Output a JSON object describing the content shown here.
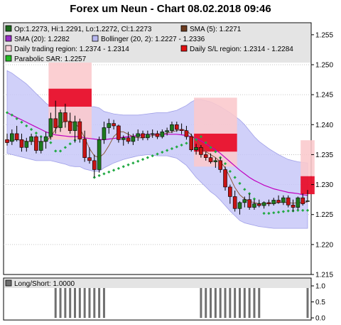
{
  "title": "Forex um Neun - Chart 08.02.2018 09:46",
  "legend": [
    {
      "label": "Op:1.2273, Hi:1.2291, Lo:1.2272, Cl:1.2273",
      "color": "#1e6b1e"
    },
    {
      "label": "SMA (5): 1.2271",
      "color": "#6b3a1e"
    },
    {
      "label": "SMA (20): 1.2282",
      "color": "#9b30c8"
    },
    {
      "label": "Bollinger (20, 2): 1.2227 - 1.2336",
      "color": "#b8b8f0"
    },
    {
      "label": "Daily trading region: 1.2374 - 1.2314",
      "color": "#f7d0d8"
    },
    {
      "label": "Daily S/L region: 1.2314 - 1.2284",
      "color": "#e01010"
    },
    {
      "label": "Parabolic SAR: 1.2257",
      "color": "#22bb22"
    }
  ],
  "colors": {
    "bull": "#1e7a1e",
    "bear": "#c81414",
    "sma5": "#8b5a3c",
    "sma20": "#c000c0",
    "bollinger_fill": "#c8c8f8",
    "bollinger_line": "#a0a0e8",
    "trading_region": "#fbc8cc",
    "sl_region": "#e8102c",
    "sar": "#22aa44",
    "volume": "#707070"
  },
  "chart_data": [
    {
      "type": "candlestick",
      "ylim": [
        1.215,
        1.257
      ],
      "yticks": [
        "1.215",
        "1.220",
        "1.225",
        "1.230",
        "1.235",
        "1.240",
        "1.245",
        "1.250",
        "1.255"
      ],
      "ytick_values": [
        1.215,
        1.22,
        1.225,
        1.23,
        1.235,
        1.24,
        1.245,
        1.25,
        1.255
      ],
      "candles": [
        [
          1.2375,
          1.2385,
          1.2365,
          1.237
        ],
        [
          1.2372,
          1.2392,
          1.2366,
          1.2385
        ],
        [
          1.2385,
          1.2398,
          1.2372,
          1.2375
        ],
        [
          1.2375,
          1.2385,
          1.2355,
          1.2362
        ],
        [
          1.2362,
          1.2378,
          1.2355,
          1.2372
        ],
        [
          1.2372,
          1.2385,
          1.2366,
          1.238
        ],
        [
          1.238,
          1.2383,
          1.2352,
          1.2357
        ],
        [
          1.2357,
          1.238,
          1.2352,
          1.2372
        ],
        [
          1.2372,
          1.2388,
          1.236,
          1.238
        ],
        [
          1.238,
          1.242,
          1.2375,
          1.241
        ],
        [
          1.241,
          1.244,
          1.2385,
          1.2395
        ],
        [
          1.2395,
          1.2425,
          1.2388,
          1.242
        ],
        [
          1.242,
          1.2435,
          1.2395,
          1.2405
        ],
        [
          1.2405,
          1.242,
          1.2385,
          1.239
        ],
        [
          1.239,
          1.2415,
          1.237,
          1.2405
        ],
        [
          1.2405,
          1.241,
          1.237,
          1.2376
        ],
        [
          1.2376,
          1.239,
          1.2338,
          1.2345
        ],
        [
          1.2345,
          1.2362,
          1.2335,
          1.234
        ],
        [
          1.234,
          1.235,
          1.2312,
          1.2325
        ],
        [
          1.2325,
          1.238,
          1.232,
          1.2375
        ],
        [
          1.2375,
          1.2405,
          1.2368,
          1.2395
        ],
        [
          1.2395,
          1.241,
          1.2385,
          1.2402
        ],
        [
          1.2402,
          1.2408,
          1.2392,
          1.2398
        ],
        [
          1.2398,
          1.24,
          1.237,
          1.2375
        ],
        [
          1.2375,
          1.2382,
          1.2365,
          1.2378
        ],
        [
          1.2378,
          1.2388,
          1.2368,
          1.2372
        ],
        [
          1.2372,
          1.2385,
          1.2366,
          1.238
        ],
        [
          1.238,
          1.2392,
          1.2373,
          1.2385
        ],
        [
          1.2385,
          1.239,
          1.2374,
          1.2378
        ],
        [
          1.2378,
          1.239,
          1.2374,
          1.2384
        ],
        [
          1.2384,
          1.2392,
          1.2378,
          1.2385
        ],
        [
          1.2385,
          1.239,
          1.2376,
          1.238
        ],
        [
          1.238,
          1.2392,
          1.2377,
          1.2388
        ],
        [
          1.2388,
          1.2395,
          1.2382,
          1.239
        ],
        [
          1.239,
          1.2405,
          1.2386,
          1.24
        ],
        [
          1.24,
          1.2405,
          1.2388,
          1.2392
        ],
        [
          1.2392,
          1.2402,
          1.2384,
          1.239
        ],
        [
          1.239,
          1.2398,
          1.2375,
          1.238
        ],
        [
          1.238,
          1.2385,
          1.2355,
          1.2358
        ],
        [
          1.2358,
          1.2368,
          1.235,
          1.2362
        ],
        [
          1.2362,
          1.2366,
          1.2345,
          1.235
        ],
        [
          1.235,
          1.2355,
          1.234,
          1.2345
        ],
        [
          1.2345,
          1.2352,
          1.2335,
          1.2338
        ],
        [
          1.2338,
          1.2345,
          1.2328,
          1.234
        ],
        [
          1.234,
          1.2345,
          1.232,
          1.2325
        ],
        [
          1.2325,
          1.233,
          1.229,
          1.2296
        ],
        [
          1.2296,
          1.23,
          1.2268,
          1.228
        ],
        [
          1.228,
          1.229,
          1.2255,
          1.226
        ],
        [
          1.226,
          1.2272,
          1.225,
          1.227
        ],
        [
          1.227,
          1.228,
          1.2262,
          1.2275
        ],
        [
          1.2275,
          1.2285,
          1.2258,
          1.2262
        ],
        [
          1.2262,
          1.2275,
          1.2258,
          1.2268
        ],
        [
          1.2268,
          1.2275,
          1.2262,
          1.2265
        ],
        [
          1.2265,
          1.2272,
          1.226,
          1.227
        ],
        [
          1.227,
          1.2275,
          1.2264,
          1.2268
        ],
        [
          1.2268,
          1.2278,
          1.2265,
          1.2274
        ],
        [
          1.2274,
          1.2282,
          1.2268,
          1.227
        ],
        [
          1.227,
          1.2282,
          1.2266,
          1.2278
        ],
        [
          1.2278,
          1.2282,
          1.2262,
          1.2266
        ],
        [
          1.2266,
          1.2275,
          1.2255,
          1.2262
        ],
        [
          1.2262,
          1.228,
          1.2258,
          1.2278
        ],
        [
          1.2278,
          1.2285,
          1.2265,
          1.2268
        ],
        [
          1.2273,
          1.2291,
          1.2272,
          1.2273
        ]
      ],
      "sma5": [
        1.2372,
        1.2374,
        1.2375,
        1.2374,
        1.2372,
        1.2372,
        1.2372,
        1.2372,
        1.2372,
        1.238,
        1.2392,
        1.2402,
        1.2406,
        1.2406,
        1.2402,
        1.2394,
        1.2378,
        1.236,
        1.2348,
        1.2345,
        1.2352,
        1.2365,
        1.238,
        1.2388,
        1.2388,
        1.2384,
        1.238,
        1.2378,
        1.2378,
        1.238,
        1.2382,
        1.2383,
        1.2384,
        1.2386,
        1.2388,
        1.239,
        1.2392,
        1.239,
        1.2383,
        1.2374,
        1.2364,
        1.2355,
        1.235,
        1.2345,
        1.2338,
        1.2328,
        1.2312,
        1.2295,
        1.2283,
        1.2276,
        1.2272,
        1.227,
        1.2268,
        1.2268,
        1.2268,
        1.2269,
        1.227,
        1.2271,
        1.227,
        1.2269,
        1.227,
        1.227,
        1.2271
      ],
      "sma20": [
        1.242,
        1.2416,
        1.2412,
        1.2408,
        1.2404,
        1.24,
        1.2396,
        1.2392,
        1.2388,
        1.2385,
        1.2383,
        1.2382,
        1.2381,
        1.238,
        1.238,
        1.238,
        1.2378,
        1.2377,
        1.2376,
        1.2375,
        1.2375,
        1.2376,
        1.2377,
        1.2378,
        1.2379,
        1.238,
        1.2381,
        1.2382,
        1.2383,
        1.2384,
        1.2384,
        1.2384,
        1.2384,
        1.2384,
        1.2384,
        1.2384,
        1.2383,
        1.2382,
        1.238,
        1.2377,
        1.2373,
        1.2368,
        1.2363,
        1.2358,
        1.2352,
        1.2345,
        1.2338,
        1.2331,
        1.2324,
        1.2318,
        1.2312,
        1.2307,
        1.2303,
        1.2299,
        1.2296,
        1.2293,
        1.2291,
        1.2289,
        1.2287,
        1.2286,
        1.2285,
        1.2283,
        1.2282
      ],
      "bollinger_upper": [
        1.249,
        1.2486,
        1.248,
        1.2474,
        1.2468,
        1.246,
        1.2452,
        1.2444,
        1.2436,
        1.243,
        1.2428,
        1.2428,
        1.2428,
        1.2429,
        1.243,
        1.243,
        1.243,
        1.243,
        1.243,
        1.2428,
        1.2422,
        1.242,
        1.2418,
        1.2417,
        1.2416,
        1.2416,
        1.2416,
        1.2416,
        1.2417,
        1.2418,
        1.2419,
        1.242,
        1.242,
        1.242,
        1.2422,
        1.2424,
        1.2428,
        1.2432,
        1.2438,
        1.2442,
        1.2442,
        1.244,
        1.2438,
        1.2434,
        1.243,
        1.2425,
        1.242,
        1.2414,
        1.2408,
        1.24,
        1.239,
        1.238,
        1.2372,
        1.2366,
        1.236,
        1.2355,
        1.235,
        1.2346,
        1.2342,
        1.234,
        1.2338,
        1.2337,
        1.2336
      ],
      "bollinger_lower": [
        1.2352,
        1.235,
        1.2348,
        1.2346,
        1.2344,
        1.2342,
        1.234,
        1.234,
        1.234,
        1.234,
        1.2338,
        1.2336,
        1.2334,
        1.2331,
        1.233,
        1.233,
        1.2326,
        1.2324,
        1.2322,
        1.2322,
        1.2328,
        1.2332,
        1.2336,
        1.2339,
        1.2342,
        1.2344,
        1.2346,
        1.2348,
        1.2349,
        1.235,
        1.2349,
        1.2348,
        1.2348,
        1.2348,
        1.2346,
        1.2344,
        1.2338,
        1.2332,
        1.2322,
        1.2312,
        1.2304,
        1.2296,
        1.2288,
        1.2282,
        1.2274,
        1.2265,
        1.2256,
        1.2248,
        1.224,
        1.2236,
        1.2234,
        1.2232,
        1.223,
        1.2229,
        1.2228,
        1.2227,
        1.2227,
        1.2227,
        1.2227,
        1.2227,
        1.2227,
        1.2227,
        1.2227
      ],
      "sar": [
        1.242,
        1.2416,
        1.241,
        1.2404,
        1.2398,
        1.2392,
        1.2386,
        1.238,
        1.2375,
        1.237,
        1.2356,
        1.2356,
        1.2362,
        1.2368,
        1.2374,
        1.238,
        null,
        null,
        1.2312,
        1.2315,
        1.2318,
        1.2321,
        1.2324,
        1.2327,
        1.233,
        1.2333,
        1.2336,
        1.2339,
        1.2342,
        1.2345,
        1.2348,
        1.2351,
        1.2354,
        1.2357,
        1.236,
        1.2363,
        1.2366,
        1.2369,
        1.2372,
        1.2375,
        1.238,
        1.237,
        1.2362,
        1.2355,
        1.2345,
        1.2335,
        1.2322,
        1.2312,
        1.2302,
        1.2292,
        1.2285,
        1.2276,
        1.2268,
        1.2252,
        1.2252,
        1.2253,
        1.2254,
        1.2255,
        1.2256,
        1.2256,
        1.2257,
        1.2257,
        1.2257
      ],
      "trading_regions": [
        {
          "start": 9,
          "end": 17,
          "top": 1.2535,
          "bottom": 1.2375
        },
        {
          "start": 39,
          "end": 47,
          "top": 1.2445,
          "bottom": 1.233
        },
        {
          "start": 61,
          "end": 63,
          "top": 1.2374,
          "bottom": 1.2314
        }
      ],
      "sl_regions": [
        {
          "start": 9,
          "end": 17,
          "top": 1.246,
          "bottom": 1.243
        },
        {
          "start": 39,
          "end": 47,
          "top": 1.2385,
          "bottom": 1.2355
        },
        {
          "start": 61,
          "end": 63,
          "top": 1.2314,
          "bottom": 1.2284
        }
      ]
    },
    {
      "type": "bar",
      "label": "Long/Short: 1.0000",
      "ylim": [
        0,
        1
      ],
      "yticks": [
        "0.0",
        "0.5",
        "1.0"
      ],
      "ytick_values": [
        0,
        0.5,
        1
      ],
      "values": [
        0,
        0,
        0,
        0,
        0,
        0,
        0,
        0,
        0,
        0,
        1,
        1,
        1,
        1,
        1,
        1,
        1,
        1,
        1,
        1,
        1,
        0,
        0,
        0,
        0,
        0,
        0,
        0,
        0,
        0,
        0,
        0,
        0,
        0,
        0,
        0,
        0,
        0,
        0,
        0,
        1,
        1,
        1,
        1,
        1,
        1,
        1,
        1,
        1,
        1,
        1,
        1,
        1,
        0,
        0,
        0,
        0,
        0,
        0,
        0,
        0,
        0,
        1
      ]
    }
  ]
}
